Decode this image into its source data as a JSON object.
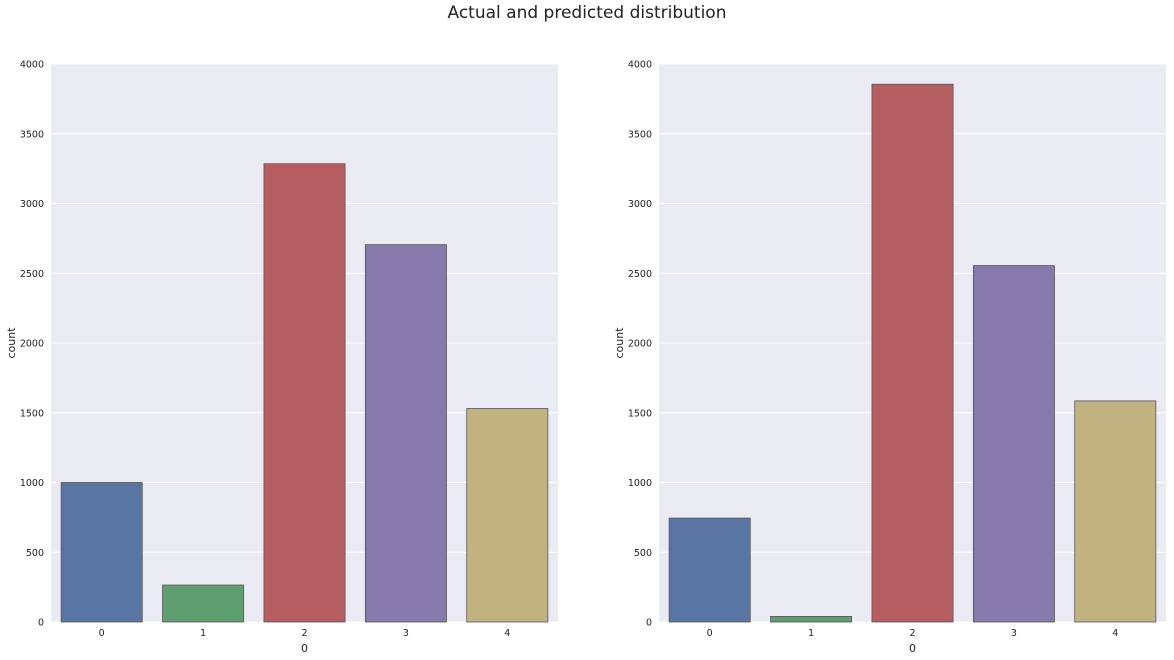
{
  "figure_title": "Actual and predicted distribution",
  "colors": {
    "background": "#EAEAF2",
    "grid": "#FFFFFF",
    "bar_edge": "#555555"
  },
  "chart_data": [
    {
      "type": "bar",
      "title": "",
      "xlabel": "0",
      "ylabel": "count",
      "categories": [
        "0",
        "1",
        "2",
        "3",
        "4"
      ],
      "values": [
        1000,
        265,
        3285,
        2705,
        1530
      ],
      "colors": [
        "#5975A4",
        "#5F9E6E",
        "#B55D60",
        "#857AAB",
        "#C1B37F"
      ],
      "ylim": [
        0,
        4000
      ],
      "yticks": [
        0,
        500,
        1000,
        1500,
        2000,
        2500,
        3000,
        3500,
        4000
      ],
      "grid": true
    },
    {
      "type": "bar",
      "title": "",
      "xlabel": "0",
      "ylabel": "count",
      "categories": [
        "0",
        "1",
        "2",
        "3",
        "4"
      ],
      "values": [
        745,
        40,
        3855,
        2555,
        1585
      ],
      "colors": [
        "#5975A4",
        "#5F9E6E",
        "#B55D60",
        "#857AAB",
        "#C1B37F"
      ],
      "ylim": [
        0,
        4000
      ],
      "yticks": [
        0,
        500,
        1000,
        1500,
        2000,
        2500,
        3000,
        3500,
        4000
      ],
      "grid": true
    }
  ]
}
